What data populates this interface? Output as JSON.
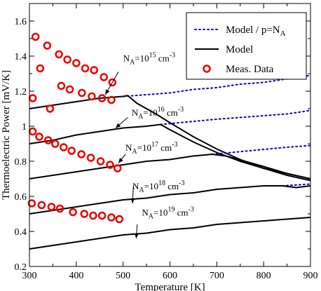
{
  "chart_data": {
    "type": "line",
    "title": "",
    "xlabel": "Temperature [K]",
    "ylabel": "Thermoelectric Power [mV/K]",
    "xlim": [
      300,
      900
    ],
    "ylim": [
      0.2,
      1.7
    ],
    "x_ticks": [
      300,
      400,
      500,
      600,
      700,
      800,
      900
    ],
    "y_ticks": [
      0.2,
      0.3,
      0.4,
      0.5,
      0.6,
      0.7,
      0.8,
      0.9,
      1.0,
      1.1,
      1.2,
      1.3,
      1.4,
      1.5,
      1.6
    ],
    "x_tick_labels": [
      "300",
      "400",
      "500",
      "600",
      "700",
      "800",
      "900"
    ],
    "y_tick_labels": [
      "0.2",
      "0.4",
      "0.6",
      "0.8",
      "1",
      "1.2",
      "1.4",
      "1.6"
    ],
    "grid": false,
    "legend_position": "top-right",
    "legend": [
      {
        "label": "Model / p=N",
        "subscript": "A",
        "style": "dotted",
        "color": "#0000cc"
      },
      {
        "label": "Model",
        "subscript": "",
        "style": "solid",
        "color": "#000000"
      },
      {
        "label": "Meas. Data",
        "subscript": "",
        "style": "marker-circle",
        "color": "#ee0000"
      }
    ],
    "series": [
      {
        "doping_base": "N",
        "doping_sub": "A",
        "doping_mid": "=10",
        "doping_exp": "15",
        "doping_unit": " cm",
        "doping_unit_exp": "-3",
        "model": {
          "x": [
            300,
            350,
            400,
            450,
            500,
            510,
            530,
            550,
            570,
            600,
            650,
            700,
            750,
            800,
            850,
            900
          ],
          "y": [
            1.1,
            1.12,
            1.14,
            1.16,
            1.17,
            1.175,
            1.13,
            1.1,
            1.07,
            1.02,
            0.94,
            0.87,
            0.81,
            0.76,
            0.72,
            0.69
          ]
        },
        "model_p_eq_NA": {
          "x": [
            500,
            550,
            600,
            650,
            700,
            750,
            800,
            850,
            900
          ],
          "y": [
            1.17,
            1.18,
            1.19,
            1.21,
            1.22,
            1.24,
            1.25,
            1.27,
            1.29
          ]
        },
        "measured": {
          "x": [
            313,
            338,
            363,
            381,
            400,
            419,
            438,
            459,
            477
          ],
          "y": [
            1.51,
            1.46,
            1.41,
            1.38,
            1.36,
            1.33,
            1.32,
            1.28,
            1.25
          ]
        }
      },
      {
        "doping_base": "N",
        "doping_sub": "A",
        "doping_mid": "=10",
        "doping_exp": "16",
        "doping_unit": " cm",
        "doping_unit_exp": "-3",
        "model": {
          "x": [
            300,
            350,
            400,
            450,
            500,
            550,
            580,
            600,
            650,
            700,
            750,
            800,
            850,
            900
          ],
          "y": [
            0.9,
            0.92,
            0.95,
            0.97,
            0.99,
            1.0,
            1.01,
            0.98,
            0.91,
            0.85,
            0.8,
            0.76,
            0.73,
            0.7
          ]
        },
        "model_p_eq_NA": {
          "x": [
            580,
            620,
            660,
            700,
            750,
            800,
            850,
            900
          ],
          "y": [
            1.01,
            1.02,
            1.03,
            1.04,
            1.05,
            1.06,
            1.07,
            1.09
          ]
        },
        "measured": {
          "x": [
            307,
            323,
            344,
            368,
            386,
            412,
            433,
            455,
            475
          ],
          "y": [
            1.16,
            1.33,
            1.1,
            1.23,
            1.21,
            1.19,
            1.17,
            1.16,
            1.15
          ]
        }
      },
      {
        "doping_base": "N",
        "doping_sub": "A",
        "doping_mid": "=10",
        "doping_exp": "17",
        "doping_unit": " cm",
        "doping_unit_exp": "-3",
        "model": {
          "x": [
            300,
            350,
            400,
            450,
            500,
            550,
            600,
            650,
            690,
            720,
            760,
            800,
            850,
            900
          ],
          "y": [
            0.7,
            0.72,
            0.74,
            0.76,
            0.78,
            0.8,
            0.81,
            0.83,
            0.84,
            0.83,
            0.8,
            0.77,
            0.73,
            0.7
          ]
        },
        "model_p_eq_NA": {
          "x": [
            690,
            730,
            770,
            810,
            850,
            900
          ],
          "y": [
            0.84,
            0.85,
            0.86,
            0.87,
            0.88,
            0.89
          ]
        },
        "measured": {
          "x": [
            307,
            321,
            340,
            355,
            373,
            390,
            411,
            431,
            452,
            472,
            488
          ],
          "y": [
            0.97,
            0.94,
            0.92,
            0.9,
            0.88,
            0.86,
            0.84,
            0.82,
            0.8,
            0.78,
            0.76
          ]
        }
      },
      {
        "doping_base": "N",
        "doping_sub": "A",
        "doping_mid": "=10",
        "doping_exp": "18",
        "doping_unit": " cm",
        "doping_unit_exp": "-3",
        "model": {
          "x": [
            300,
            350,
            400,
            450,
            500,
            550,
            600,
            650,
            700,
            750,
            800,
            840,
            870,
            900
          ],
          "y": [
            0.5,
            0.52,
            0.54,
            0.56,
            0.58,
            0.59,
            0.61,
            0.62,
            0.64,
            0.65,
            0.66,
            0.66,
            0.65,
            0.66
          ]
        },
        "model_p_eq_NA": {
          "x": [
            840,
            870,
            900
          ],
          "y": [
            0.66,
            0.665,
            0.67
          ]
        },
        "measured": {
          "x": [
            305,
            326,
            347,
            365,
            393,
            417,
            436,
            455,
            475,
            492
          ],
          "y": [
            0.56,
            0.55,
            0.54,
            0.53,
            0.51,
            0.5,
            0.49,
            0.49,
            0.48,
            0.47
          ]
        }
      },
      {
        "doping_base": "N",
        "doping_sub": "A",
        "doping_mid": "=10",
        "doping_exp": "19",
        "doping_unit": " cm",
        "doping_unit_exp": "-3",
        "model": {
          "x": [
            300,
            350,
            400,
            450,
            500,
            550,
            600,
            650,
            700,
            750,
            800,
            850,
            900
          ],
          "y": [
            0.3,
            0.32,
            0.34,
            0.36,
            0.38,
            0.39,
            0.41,
            0.42,
            0.44,
            0.45,
            0.46,
            0.47,
            0.48
          ]
        },
        "model_p_eq_NA": {
          "x": [],
          "y": []
        },
        "measured": {
          "x": [],
          "y": []
        }
      }
    ],
    "annotations": [
      {
        "series_index": 0,
        "label_pos": [
          500,
          1.37
        ],
        "arrow_from": [
          490,
          1.31
        ],
        "arrow_to": [
          462,
          1.18
        ]
      },
      {
        "series_index": 1,
        "label_pos": [
          518,
          1.06
        ],
        "arrow_from": [
          510,
          1.05
        ],
        "arrow_to": [
          484,
          0.99
        ]
      },
      {
        "series_index": 2,
        "label_pos": [
          505,
          0.86
        ],
        "arrow_from": [
          505,
          0.84
        ],
        "arrow_to": [
          490,
          0.79
        ]
      },
      {
        "series_index": 3,
        "label_pos": [
          520,
          0.64
        ],
        "arrow_from": [
          522,
          0.66
        ],
        "arrow_to": [
          520,
          0.56
        ]
      },
      {
        "series_index": 4,
        "label_pos": [
          540,
          0.49
        ],
        "arrow_from": [
          530,
          0.44
        ],
        "arrow_to": [
          528,
          0.36
        ]
      }
    ]
  }
}
